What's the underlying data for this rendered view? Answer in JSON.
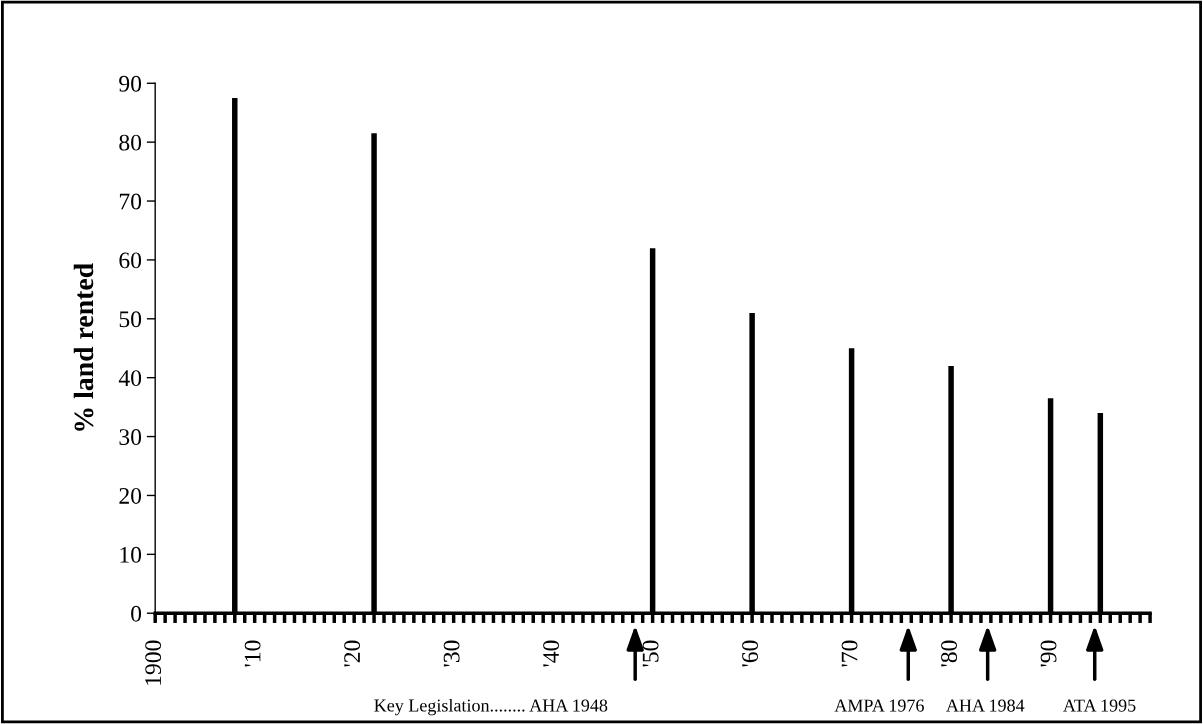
{
  "chart_data": {
    "type": "bar",
    "ylabel": "% land rented",
    "x": [
      1908,
      1922,
      1950,
      1960,
      1970,
      1980,
      1990,
      1995
    ],
    "values": [
      87.5,
      81.5,
      62,
      51,
      45,
      42,
      36.5,
      34
    ],
    "color": "#000000",
    "xlim": [
      1900,
      2000
    ],
    "xticks": [
      {
        "value": 1900,
        "label": "1900"
      },
      {
        "value": 1901,
        "label": null
      },
      {
        "value": 1902,
        "label": null
      },
      {
        "value": 1903,
        "label": null
      },
      {
        "value": 1904,
        "label": null
      },
      {
        "value": 1905,
        "label": null
      },
      {
        "value": 1906,
        "label": null
      },
      {
        "value": 1907,
        "label": null
      },
      {
        "value": 1908,
        "label": null
      },
      {
        "value": 1909,
        "label": null
      },
      {
        "value": 1910,
        "label": "'10"
      },
      {
        "value": 1911,
        "label": null
      },
      {
        "value": 1912,
        "label": null
      },
      {
        "value": 1913,
        "label": null
      },
      {
        "value": 1914,
        "label": null
      },
      {
        "value": 1915,
        "label": null
      },
      {
        "value": 1916,
        "label": null
      },
      {
        "value": 1917,
        "label": null
      },
      {
        "value": 1918,
        "label": null
      },
      {
        "value": 1919,
        "label": null
      },
      {
        "value": 1920,
        "label": "'20"
      },
      {
        "value": 1921,
        "label": null
      },
      {
        "value": 1922,
        "label": null
      },
      {
        "value": 1923,
        "label": null
      },
      {
        "value": 1924,
        "label": null
      },
      {
        "value": 1925,
        "label": null
      },
      {
        "value": 1926,
        "label": null
      },
      {
        "value": 1927,
        "label": null
      },
      {
        "value": 1928,
        "label": null
      },
      {
        "value": 1929,
        "label": null
      },
      {
        "value": 1930,
        "label": "'30"
      },
      {
        "value": 1931,
        "label": null
      },
      {
        "value": 1932,
        "label": null
      },
      {
        "value": 1933,
        "label": null
      },
      {
        "value": 1934,
        "label": null
      },
      {
        "value": 1935,
        "label": null
      },
      {
        "value": 1936,
        "label": null
      },
      {
        "value": 1937,
        "label": null
      },
      {
        "value": 1938,
        "label": null
      },
      {
        "value": 1939,
        "label": null
      },
      {
        "value": 1940,
        "label": "'40"
      },
      {
        "value": 1941,
        "label": null
      },
      {
        "value": 1942,
        "label": null
      },
      {
        "value": 1943,
        "label": null
      },
      {
        "value": 1944,
        "label": null
      },
      {
        "value": 1945,
        "label": null
      },
      {
        "value": 1946,
        "label": null
      },
      {
        "value": 1947,
        "label": null
      },
      {
        "value": 1948,
        "label": null
      },
      {
        "value": 1949,
        "label": null
      },
      {
        "value": 1950,
        "label": "'50"
      },
      {
        "value": 1951,
        "label": null
      },
      {
        "value": 1952,
        "label": null
      },
      {
        "value": 1953,
        "label": null
      },
      {
        "value": 1954,
        "label": null
      },
      {
        "value": 1955,
        "label": null
      },
      {
        "value": 1956,
        "label": null
      },
      {
        "value": 1957,
        "label": null
      },
      {
        "value": 1958,
        "label": null
      },
      {
        "value": 1959,
        "label": null
      },
      {
        "value": 1960,
        "label": "'60"
      },
      {
        "value": 1961,
        "label": null
      },
      {
        "value": 1962,
        "label": null
      },
      {
        "value": 1963,
        "label": null
      },
      {
        "value": 1964,
        "label": null
      },
      {
        "value": 1965,
        "label": null
      },
      {
        "value": 1966,
        "label": null
      },
      {
        "value": 1967,
        "label": null
      },
      {
        "value": 1968,
        "label": null
      },
      {
        "value": 1969,
        "label": null
      },
      {
        "value": 1970,
        "label": "'70"
      },
      {
        "value": 1971,
        "label": null
      },
      {
        "value": 1972,
        "label": null
      },
      {
        "value": 1973,
        "label": null
      },
      {
        "value": 1974,
        "label": null
      },
      {
        "value": 1975,
        "label": null
      },
      {
        "value": 1976,
        "label": null
      },
      {
        "value": 1977,
        "label": null
      },
      {
        "value": 1978,
        "label": null
      },
      {
        "value": 1979,
        "label": null
      },
      {
        "value": 1980,
        "label": "'80"
      },
      {
        "value": 1981,
        "label": null
      },
      {
        "value": 1982,
        "label": null
      },
      {
        "value": 1983,
        "label": null
      },
      {
        "value": 1984,
        "label": null
      },
      {
        "value": 1985,
        "label": null
      },
      {
        "value": 1986,
        "label": null
      },
      {
        "value": 1987,
        "label": null
      },
      {
        "value": 1988,
        "label": null
      },
      {
        "value": 1989,
        "label": null
      },
      {
        "value": 1990,
        "label": "'90"
      },
      {
        "value": 1991,
        "label": null
      },
      {
        "value": 1992,
        "label": null
      },
      {
        "value": 1993,
        "label": null
      },
      {
        "value": 1994,
        "label": null
      },
      {
        "value": 1995,
        "label": null
      },
      {
        "value": 1996,
        "label": null
      },
      {
        "value": 1997,
        "label": null
      },
      {
        "value": 1998,
        "label": null
      },
      {
        "value": 1999,
        "label": null
      },
      {
        "value": 2000,
        "label": null
      }
    ],
    "ylim": [
      0,
      90
    ],
    "yticks": [
      0,
      10,
      20,
      30,
      40,
      50,
      60,
      70,
      80,
      90
    ],
    "annotations": [
      "Key Legislation........ AHA 1948",
      "AMPA 1976",
      "AHA 1984",
      "ATA 1995"
    ],
    "grid": false,
    "legend": false
  }
}
